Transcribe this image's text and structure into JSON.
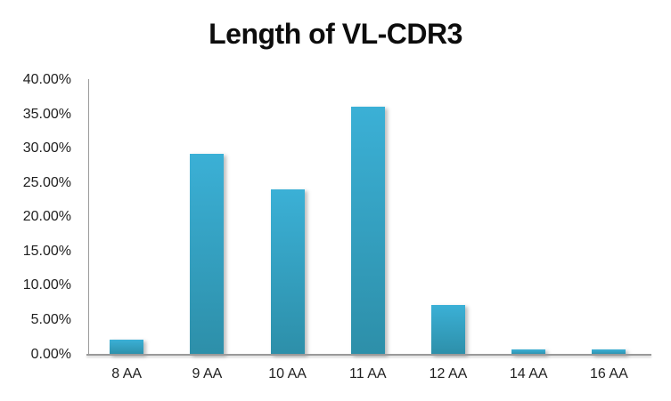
{
  "title": "Length of VL-CDR3",
  "colors": {
    "background": "#ffffff",
    "title_text": "#0d0d0d",
    "tick_text": "#1f1f1f",
    "axis_line": "#9a9a9a",
    "bar_gradient_top": "#3bb0d6",
    "bar_gradient_bottom": "#2d8fa9"
  },
  "chart_data": {
    "type": "bar",
    "title": "Length of VL-CDR3",
    "categories": [
      "8 AA",
      "9 AA",
      "10 AA",
      "11 AA",
      "12 AA",
      "14 AA",
      "16 AA"
    ],
    "values": [
      2.2,
      29.3,
      24.1,
      36.2,
      7.2,
      0.75,
      0.75
    ],
    "series_unit": "percent",
    "xlabel": "",
    "ylabel": "",
    "ylim": [
      0,
      40
    ],
    "ytick_step": 5,
    "ytick_labels": [
      "0.00%",
      "5.00%",
      "10.00%",
      "15.00%",
      "20.00%",
      "25.00%",
      "30.00%",
      "35.00%",
      "40.00%"
    ],
    "grid": false,
    "legend": false
  }
}
